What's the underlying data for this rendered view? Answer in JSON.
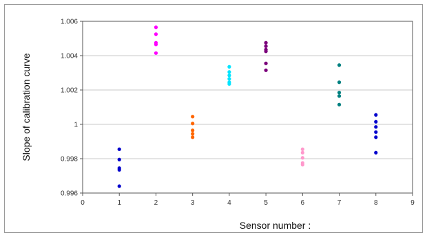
{
  "chart_data": {
    "type": "scatter",
    "title": "",
    "xlabel": "Sensor number :",
    "ylabel": "Slope of calibration curve",
    "xlim": [
      0,
      9
    ],
    "ylim": [
      0.996,
      1.006
    ],
    "grid": "horizontal",
    "legend": "none",
    "x_ticks": [
      "0",
      "1",
      "2",
      "3",
      "4",
      "5",
      "6",
      "7",
      "8",
      "9"
    ],
    "y_ticks": [
      "0.996",
      "0.998",
      "1",
      "1.002",
      "1.004",
      "1.006"
    ],
    "series": [
      {
        "x": 1,
        "color": "#0000cc",
        "values": [
          0.99855,
          0.99795,
          0.99745,
          0.99735,
          0.9964
        ]
      },
      {
        "x": 2,
        "color": "#ff00ff",
        "values": [
          1.00565,
          1.00525,
          1.00475,
          1.00465,
          1.00415
        ]
      },
      {
        "x": 3,
        "color": "#ff6600",
        "values": [
          1.00045,
          1.00005,
          0.99965,
          0.99945,
          0.99925
        ]
      },
      {
        "x": 4,
        "color": "#00e5ff",
        "values": [
          1.00335,
          1.00305,
          1.00285,
          1.00265,
          1.00245,
          1.00235
        ]
      },
      {
        "x": 5,
        "color": "#7a007a",
        "values": [
          1.00475,
          1.00455,
          1.00435,
          1.00425,
          1.00355,
          1.00315
        ]
      },
      {
        "x": 6,
        "color": "#ff99cc",
        "values": [
          0.99855,
          0.99835,
          0.99805,
          0.99775,
          0.99765
        ]
      },
      {
        "x": 7,
        "color": "#008080",
        "values": [
          1.00345,
          1.00245,
          1.00185,
          1.00165,
          1.00115
        ]
      },
      {
        "x": 8,
        "color": "#0000cc",
        "values": [
          1.00055,
          1.00015,
          0.99985,
          0.99955,
          0.99925,
          0.99835
        ]
      }
    ]
  }
}
